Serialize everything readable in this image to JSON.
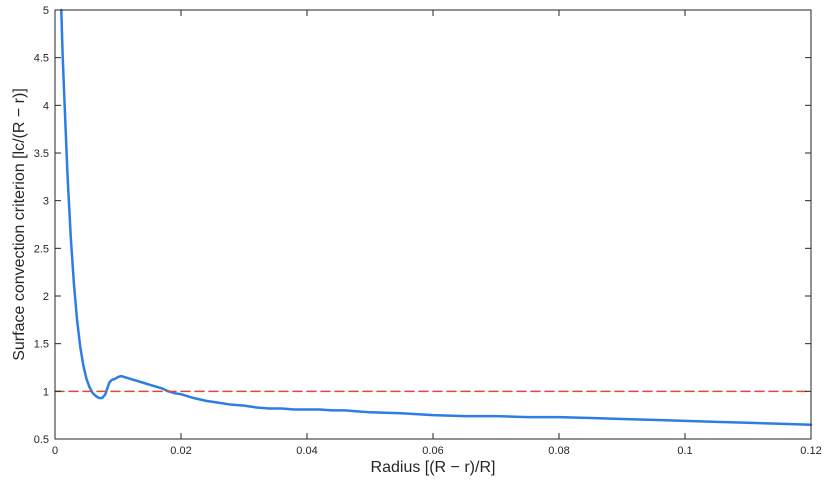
{
  "chart_data": {
    "type": "line",
    "title": "",
    "xlabel": "Radius [(R − r)/R]",
    "ylabel": "Surface convection criterion [lc/(R − r)]",
    "xlim": [
      0,
      0.12
    ],
    "ylim": [
      0.5,
      5
    ],
    "xticks": [
      0,
      0.02,
      0.04,
      0.06,
      0.08,
      0.1,
      0.12
    ],
    "xtick_labels": [
      "0",
      "0.02",
      "0.04",
      "0.06",
      "0.08",
      "0.1",
      "0.12"
    ],
    "yticks": [
      0.5,
      1,
      1.5,
      2,
      2.5,
      3,
      3.5,
      4,
      4.5,
      5
    ],
    "ytick_labels": [
      "0.5",
      "1",
      "1.5",
      "2",
      "2.5",
      "3",
      "3.5",
      "4",
      "4.5",
      "5"
    ],
    "grid": false,
    "series": [
      {
        "color": "#2c7ee5",
        "style": "solid",
        "x": [
          0.001,
          0.0012,
          0.0015,
          0.002,
          0.0025,
          0.003,
          0.0035,
          0.004,
          0.0045,
          0.005,
          0.0055,
          0.006,
          0.0065,
          0.007,
          0.0075,
          0.008,
          0.0083,
          0.0086,
          0.009,
          0.0095,
          0.01,
          0.0105,
          0.011,
          0.0115,
          0.012,
          0.013,
          0.014,
          0.015,
          0.016,
          0.017,
          0.018,
          0.019,
          0.02,
          0.022,
          0.024,
          0.026,
          0.028,
          0.03,
          0.032,
          0.034,
          0.036,
          0.038,
          0.04,
          0.042,
          0.044,
          0.046,
          0.048,
          0.05,
          0.055,
          0.06,
          0.065,
          0.07,
          0.075,
          0.08,
          0.085,
          0.09,
          0.095,
          0.1,
          0.105,
          0.11,
          0.115,
          0.12
        ],
        "values": [
          5.0,
          4.55,
          4.05,
          3.25,
          2.62,
          2.13,
          1.75,
          1.47,
          1.27,
          1.13,
          1.04,
          0.98,
          0.95,
          0.93,
          0.93,
          0.97,
          1.03,
          1.09,
          1.12,
          1.13,
          1.15,
          1.16,
          1.15,
          1.14,
          1.13,
          1.11,
          1.09,
          1.07,
          1.05,
          1.03,
          1.0,
          0.98,
          0.97,
          0.93,
          0.9,
          0.88,
          0.86,
          0.85,
          0.83,
          0.82,
          0.82,
          0.81,
          0.81,
          0.81,
          0.8,
          0.8,
          0.79,
          0.78,
          0.77,
          0.75,
          0.74,
          0.74,
          0.73,
          0.73,
          0.72,
          0.71,
          0.7,
          0.69,
          0.68,
          0.67,
          0.66,
          0.65
        ]
      },
      {
        "color": "#d94a38",
        "style": "dashed",
        "x": [
          0,
          0.12
        ],
        "values": [
          1,
          1
        ]
      }
    ]
  }
}
